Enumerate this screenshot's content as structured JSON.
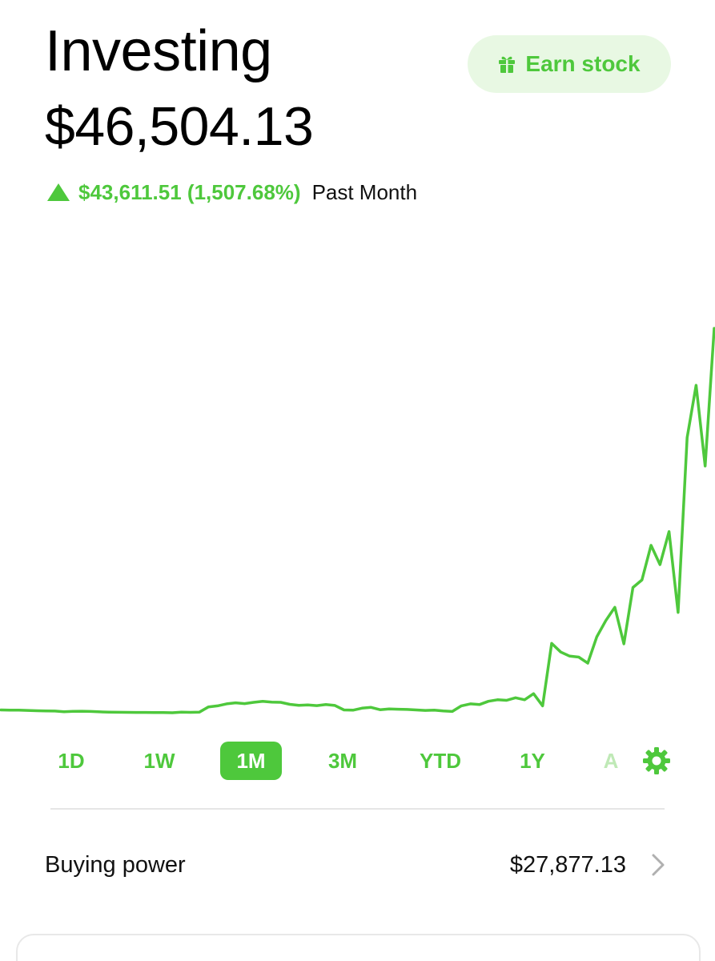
{
  "header": {
    "title": "Investing",
    "earn_button_label": "Earn stock",
    "earn_icon": "gift-icon"
  },
  "portfolio": {
    "balance": "$46,504.13",
    "change_value": "$43,611.51 (1,507.68%)",
    "change_period": "Past Month",
    "change_icon": "triangle-up-icon"
  },
  "colors": {
    "accent": "#4ec83c",
    "accent_light": "#e8f8e3",
    "text": "#111111",
    "divider": "#e6e6e6"
  },
  "ranges": {
    "items": [
      {
        "label": "1D"
      },
      {
        "label": "1W"
      },
      {
        "label": "1M",
        "active": true
      },
      {
        "label": "3M"
      },
      {
        "label": "YTD"
      },
      {
        "label": "1Y"
      },
      {
        "label": "A"
      }
    ],
    "settings_icon": "gear-icon"
  },
  "buying_power": {
    "label": "Buying power",
    "value": "$27,877.13",
    "chevron_icon": "chevron-right-icon"
  },
  "chart_data": {
    "type": "line",
    "title": "",
    "xlabel": "",
    "ylabel": "",
    "grid": false,
    "legend": "none",
    "series": [
      {
        "color": "#4ec83c",
        "values": [
          2940,
          2935,
          2937,
          2930,
          2925,
          2920,
          2918,
          2905,
          2912,
          2915,
          2910,
          2902,
          2898,
          2895,
          2893,
          2892,
          2891,
          2890,
          2889,
          2885,
          2897,
          2893,
          2898,
          3000,
          3020,
          3060,
          3080,
          3065,
          3090,
          3110,
          3095,
          3090,
          3050,
          3030,
          3040,
          3025,
          3045,
          3028,
          2940,
          2935,
          2975,
          2990,
          2945,
          2960,
          2955,
          2950,
          2940,
          2930,
          2935,
          2920,
          2910,
          3020,
          3060,
          3045,
          3110,
          3140,
          3130,
          3180,
          3140,
          3260,
          3020,
          4250,
          4080,
          4000,
          3980,
          3860,
          4380,
          4700,
          4960,
          4240,
          5350,
          5500,
          6180,
          5800,
          6450,
          4860,
          8300,
          9330,
          7740,
          10450
        ]
      }
    ]
  }
}
